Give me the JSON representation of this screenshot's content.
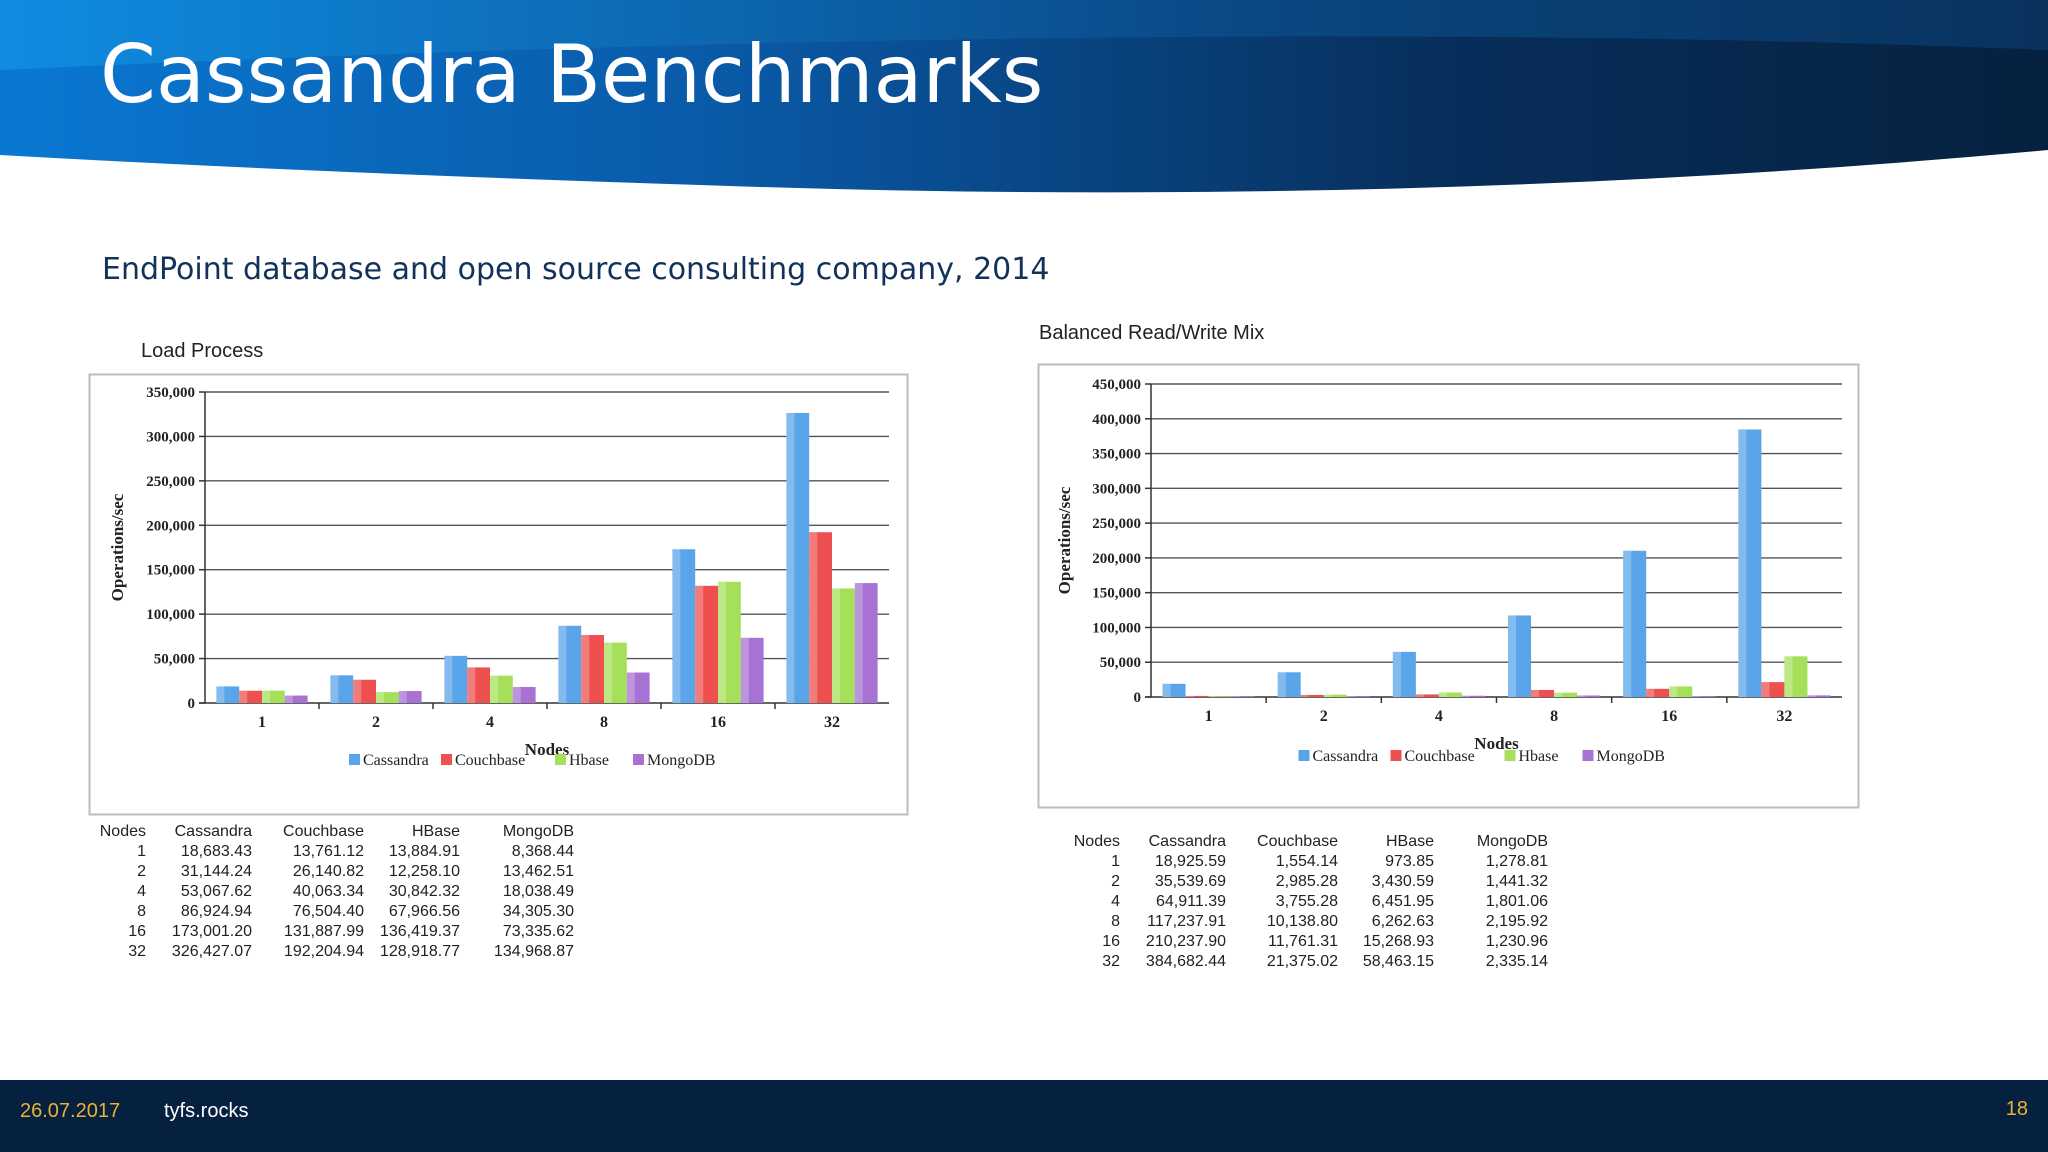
{
  "slide": {
    "title": "Cassandra Benchmarks",
    "subtitle": "EndPoint database and open source consulting company, 2014",
    "footer_date": "26.07.2017",
    "footer_site": "tyfs.rocks",
    "page_number": "18"
  },
  "colors": {
    "header_dark": "#06213f",
    "header_blue": "#0a6cc4",
    "Cassandra": "#5aa5ea",
    "Couchbase": "#ee5050",
    "Hbase": "#a6e05a",
    "MongoDB": "#a772d4",
    "footer": "#06213f",
    "footer_accent": "#e9b232"
  },
  "chart_data": [
    {
      "type": "bar",
      "title": "Load Process",
      "xlabel": "Nodes",
      "ylabel": "Operations/sec",
      "ylim": [
        0,
        350000
      ],
      "yticks": [
        "0",
        "50,000",
        "100,000",
        "150,000",
        "200,000",
        "250,000",
        "300,000",
        "350,000"
      ],
      "categories": [
        "1",
        "2",
        "4",
        "8",
        "16",
        "32"
      ],
      "legend_position": "bottom",
      "grid": true,
      "series": [
        {
          "name": "Cassandra",
          "values": [
            18683.43,
            31144.24,
            53067.62,
            86924.94,
            173001.2,
            326427.07
          ]
        },
        {
          "name": "Couchbase",
          "values": [
            13761.12,
            26140.82,
            40063.34,
            76504.4,
            131887.99,
            192204.94
          ]
        },
        {
          "name": "Hbase",
          "values": [
            13884.91,
            12258.1,
            30842.32,
            67966.56,
            136419.37,
            128918.77
          ]
        },
        {
          "name": "MongoDB",
          "values": [
            8368.44,
            13462.51,
            18038.49,
            34305.3,
            73335.62,
            134968.87
          ]
        }
      ],
      "table": {
        "headers": [
          "Nodes",
          "Cassandra",
          "Couchbase",
          "HBase",
          "MongoDB"
        ],
        "rows": [
          [
            "1",
            "18,683.43",
            "13,761.12",
            "13,884.91",
            "8,368.44"
          ],
          [
            "2",
            "31,144.24",
            "26,140.82",
            "12,258.10",
            "13,462.51"
          ],
          [
            "4",
            "53,067.62",
            "40,063.34",
            "30,842.32",
            "18,038.49"
          ],
          [
            "8",
            "86,924.94",
            "76,504.40",
            "67,966.56",
            "34,305.30"
          ],
          [
            "16",
            "173,001.20",
            "131,887.99",
            "136,419.37",
            "73,335.62"
          ],
          [
            "32",
            "326,427.07",
            "192,204.94",
            "128,918.77",
            "134,968.87"
          ]
        ]
      }
    },
    {
      "type": "bar",
      "title": "Balanced Read/Write Mix",
      "xlabel": "Nodes",
      "ylabel": "Operations/sec",
      "ylim": [
        0,
        450000
      ],
      "yticks": [
        "0",
        "50,000",
        "100,000",
        "150,000",
        "200,000",
        "250,000",
        "300,000",
        "350,000",
        "400,000",
        "450,000"
      ],
      "categories": [
        "1",
        "2",
        "4",
        "8",
        "16",
        "32"
      ],
      "legend_position": "bottom",
      "grid": true,
      "series": [
        {
          "name": "Cassandra",
          "values": [
            18925.59,
            35539.69,
            64911.39,
            117237.91,
            210237.9,
            384682.44
          ]
        },
        {
          "name": "Couchbase",
          "values": [
            1554.14,
            2985.28,
            3755.28,
            10138.8,
            11761.31,
            21375.02
          ]
        },
        {
          "name": "Hbase",
          "values": [
            973.85,
            3430.59,
            6451.95,
            6262.63,
            15268.93,
            58463.15
          ]
        },
        {
          "name": "MongoDB",
          "values": [
            1278.81,
            1441.32,
            1801.06,
            2195.92,
            1230.96,
            2335.14
          ]
        }
      ],
      "table": {
        "headers": [
          "Nodes",
          "Cassandra",
          "Couchbase",
          "HBase",
          "MongoDB"
        ],
        "rows": [
          [
            "1",
            "18,925.59",
            "1,554.14",
            "973.85",
            "1,278.81"
          ],
          [
            "2",
            "35,539.69",
            "2,985.28",
            "3,430.59",
            "1,441.32"
          ],
          [
            "4",
            "64,911.39",
            "3,755.28",
            "6,451.95",
            "1,801.06"
          ],
          [
            "8",
            "117,237.91",
            "10,138.80",
            "6,262.63",
            "2,195.92"
          ],
          [
            "16",
            "210,237.90",
            "11,761.31",
            "15,268.93",
            "1,230.96"
          ],
          [
            "32",
            "384,682.44",
            "21,375.02",
            "58,463.15",
            "2,335.14"
          ]
        ]
      }
    }
  ]
}
